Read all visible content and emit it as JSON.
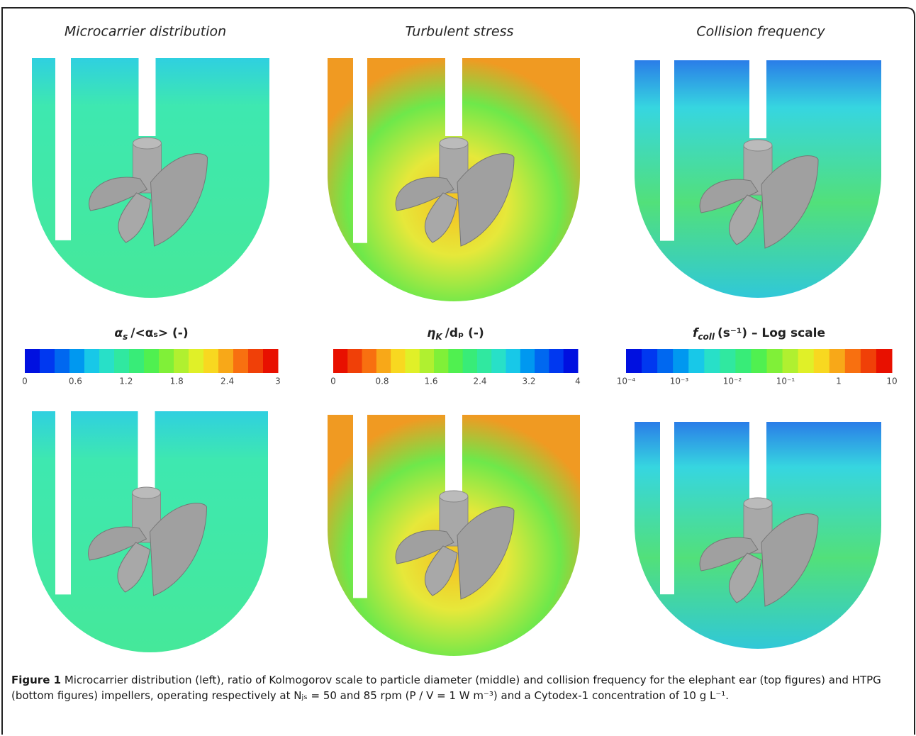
{
  "panels": {
    "titles": [
      "Microcarrier distribution",
      "Turbulent stress",
      "Collision frequency"
    ]
  },
  "colorbars": [
    {
      "symbol": "α",
      "subscript": "s",
      "unit": "/<αₛ> (-)",
      "ticks": [
        "0",
        "0.6",
        "1.2",
        "1.8",
        "2.4",
        "3"
      ]
    },
    {
      "symbol": "η",
      "subscript": "K",
      "unit": "/dₚ (-)",
      "ticks": [
        "0",
        "0.8",
        "1.6",
        "2.4",
        "3.2",
        "4"
      ]
    },
    {
      "symbol": "f",
      "subscript": "coll",
      "unit": "(s⁻¹) – Log scale",
      "ticks": [
        "10⁻⁴",
        "10⁻³",
        "10⁻²",
        "10⁻¹",
        "1",
        "10"
      ]
    }
  ],
  "caption": {
    "label": "Figure 1",
    "text": "Microcarrier distribution (left), ratio of Kolmogorov scale to particle diameter (middle) and collision frequency for the elephant ear (top figures) and HTPG (bottom figures) impellers, operating respectively at Nⱼₛ = 50 and 85 rpm (P / V = 1 W m⁻³) and a Cytodex-1 concentration of 10 g L⁻¹."
  }
}
